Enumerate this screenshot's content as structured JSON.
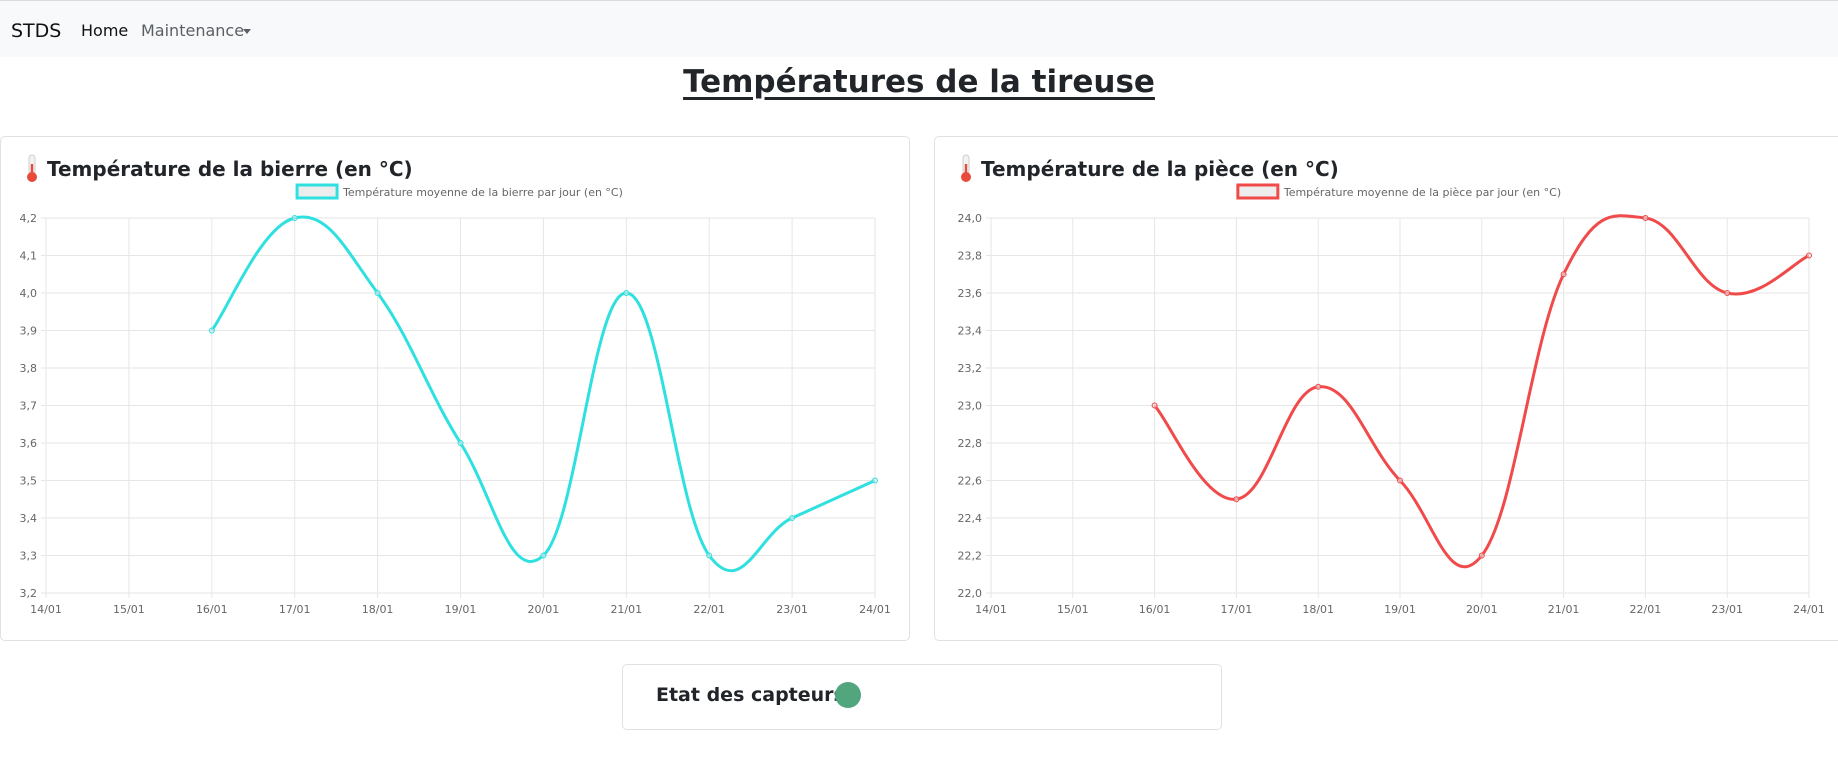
{
  "navbar": {
    "brand": "STDS",
    "items": [
      {
        "label": "Home"
      },
      {
        "label": "Maintenance"
      }
    ]
  },
  "page_title": "Températures de la tireuse",
  "charts": [
    {
      "card_title": "Température de la bierre (en °C)"
    },
    {
      "card_title": "Température de la pièce (en °C)"
    }
  ],
  "sensors": {
    "label": "Etat des capteurs :",
    "status_color": "#52a67e"
  },
  "chart_data": [
    {
      "type": "line",
      "categories": [
        "14/01",
        "15/01",
        "16/01",
        "17/01",
        "18/01",
        "19/01",
        "20/01",
        "21/01",
        "22/01",
        "23/01",
        "24/01"
      ],
      "series": [
        {
          "name": "Température moyenne de la bierre par jour (en °C)",
          "values": [
            null,
            null,
            3.9,
            4.2,
            4.0,
            3.6,
            3.3,
            4.0,
            3.3,
            3.4,
            3.5
          ],
          "color": "#2ee0e0"
        }
      ],
      "ylim": [
        3.2,
        4.2
      ],
      "yticks": [
        "4,2",
        "4,1",
        "4,0",
        "3,9",
        "3,8",
        "3,7",
        "3,6",
        "3,5",
        "3,4",
        "3,3",
        "3,2"
      ],
      "grid": true,
      "legend": "top"
    },
    {
      "type": "line",
      "categories": [
        "14/01",
        "15/01",
        "16/01",
        "17/01",
        "18/01",
        "19/01",
        "20/01",
        "21/01",
        "22/01",
        "23/01",
        "24/01"
      ],
      "series": [
        {
          "name": "Température moyenne de la pièce par jour (en °C)",
          "values": [
            null,
            null,
            23.0,
            22.5,
            23.1,
            22.6,
            22.2,
            23.7,
            24.0,
            23.6,
            23.8
          ],
          "color": "#f04a4a"
        }
      ],
      "ylim": [
        22.0,
        24.0
      ],
      "yticks": [
        "24,0",
        "23,8",
        "23,6",
        "23,4",
        "23,2",
        "23,0",
        "22,8",
        "22,6",
        "22,4",
        "22,2",
        "22,0"
      ],
      "grid": true,
      "legend": "top"
    }
  ]
}
